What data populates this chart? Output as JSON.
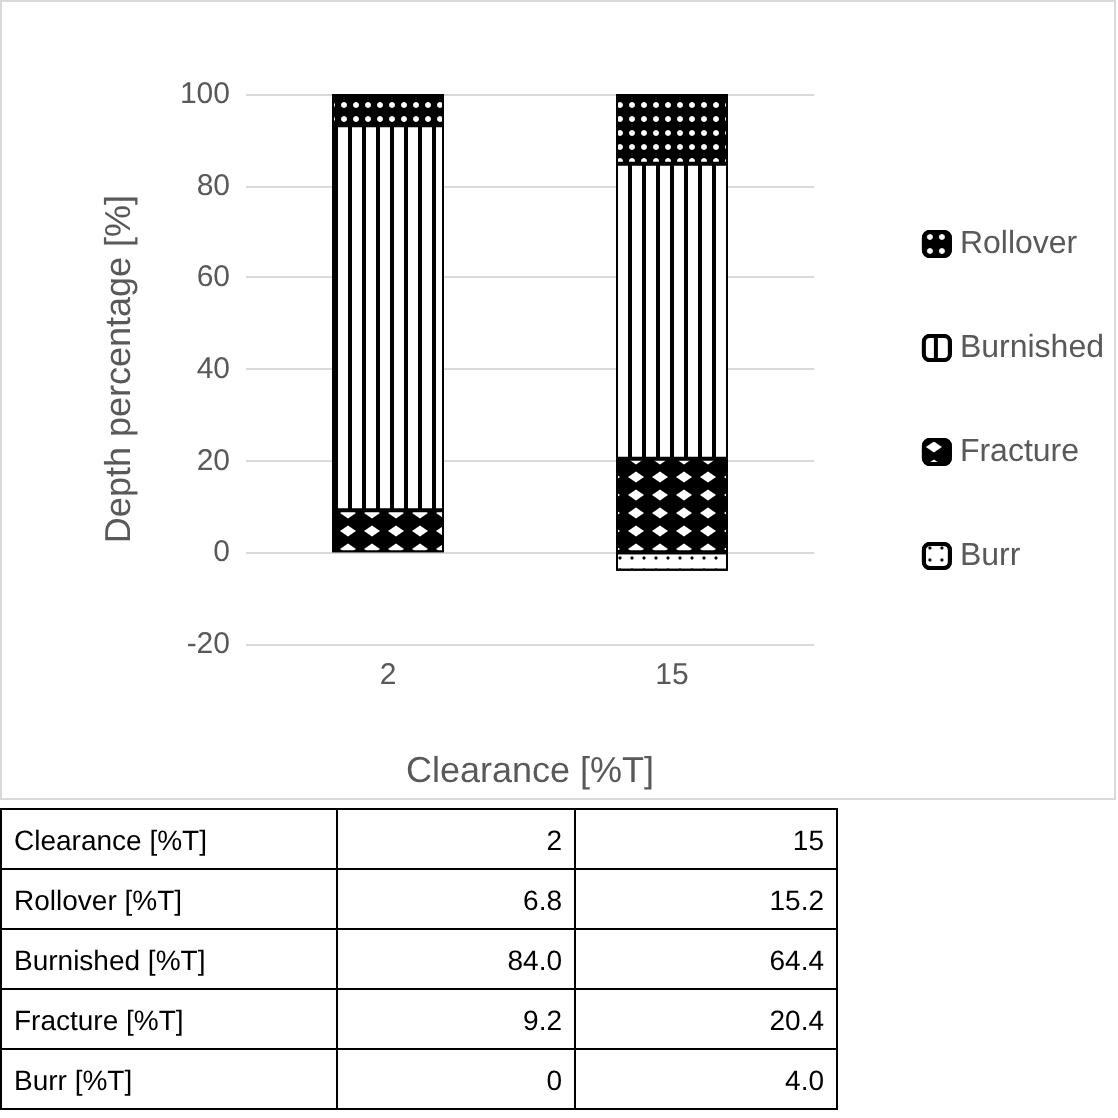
{
  "chart_data": [
    {
      "type": "bar",
      "stacked": true,
      "xlabel": "Clearance [%T]",
      "ylabel": "Depth percentage [%]",
      "categories": [
        "2",
        "15"
      ],
      "ylim": [
        -20,
        100
      ],
      "yticks": [
        -20,
        0,
        20,
        40,
        60,
        80,
        100
      ],
      "grid": "y",
      "legend": "right",
      "series": [
        {
          "name": "Burr",
          "color": "#ffffff",
          "values": [
            0,
            -4
          ]
        },
        {
          "name": "Fracture",
          "color": "#000000",
          "values": [
            9.2,
            20.4
          ]
        },
        {
          "name": "Burnished",
          "color": "#000000",
          "values": [
            84.0,
            64.4
          ]
        },
        {
          "name": "Rollover",
          "color": "#000000",
          "values": [
            6.8,
            15.2
          ]
        }
      ]
    },
    {
      "type": "other",
      "annotations": [
        "Clearance [%T]",
        "2",
        "15",
        "Rollover [%T]",
        "6.8",
        "15.2",
        "Burnished [%T]",
        "84.0",
        "64.4",
        "Fracture [%T]",
        "9.2",
        "20.4",
        "Burr [%T]",
        "0",
        "4.0"
      ]
    }
  ]
}
